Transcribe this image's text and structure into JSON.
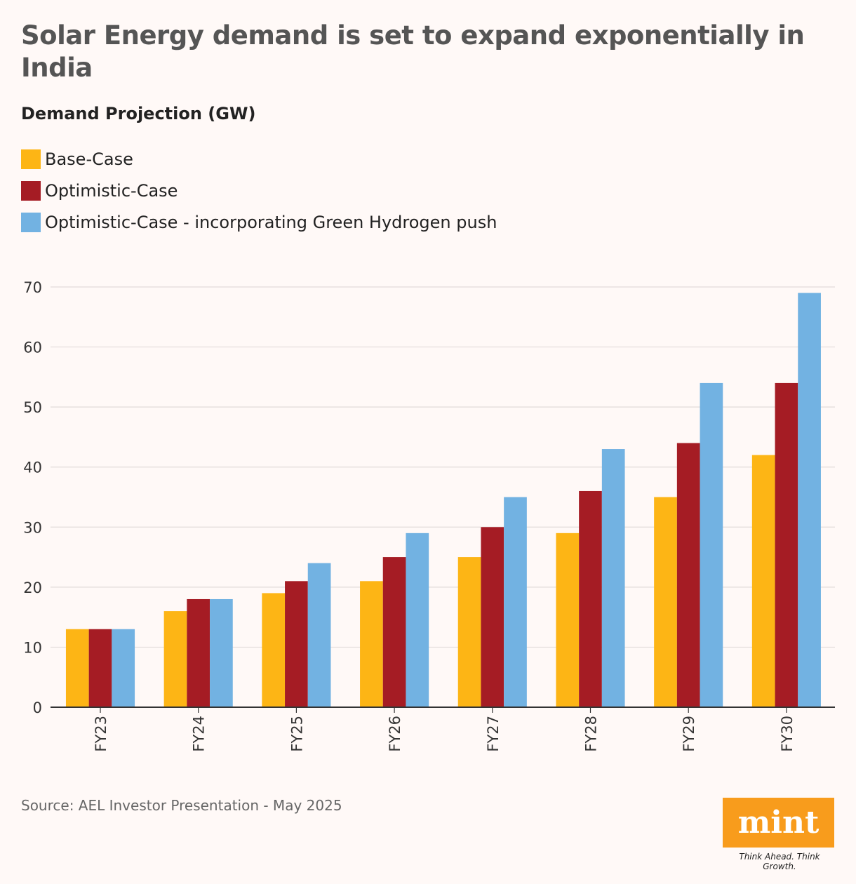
{
  "title": "Solar Energy demand is set to expand exponentially in India",
  "logo": {
    "text": "mint",
    "tagline": "Think Ahead. Think Growth.",
    "color": "#f89c1c"
  },
  "source": "Source: AEL Investor Presentation - May 2025",
  "chart_data": {
    "type": "bar",
    "title": "Demand Projection (GW)",
    "categories": [
      "FY23",
      "FY24",
      "FY25",
      "FY26",
      "FY27",
      "FY28",
      "FY29",
      "FY30"
    ],
    "series": [
      {
        "name": "Base-Case",
        "color": "#fdb515",
        "values": [
          13,
          16,
          19,
          21,
          25,
          29,
          35,
          42
        ]
      },
      {
        "name": "Optimistic-Case",
        "color": "#a51c24",
        "values": [
          13,
          18,
          21,
          25,
          30,
          36,
          44,
          54
        ]
      },
      {
        "name": "Optimistic-Case - incorporating Green Hydrogen push",
        "color": "#72b2e2",
        "values": [
          13,
          18,
          24,
          29,
          35,
          43,
          54,
          69
        ]
      }
    ],
    "ylim": [
      0,
      70
    ],
    "yticks": [
      0,
      10,
      20,
      30,
      40,
      50,
      60,
      70
    ],
    "grid": true,
    "legend_position": "top-left"
  }
}
